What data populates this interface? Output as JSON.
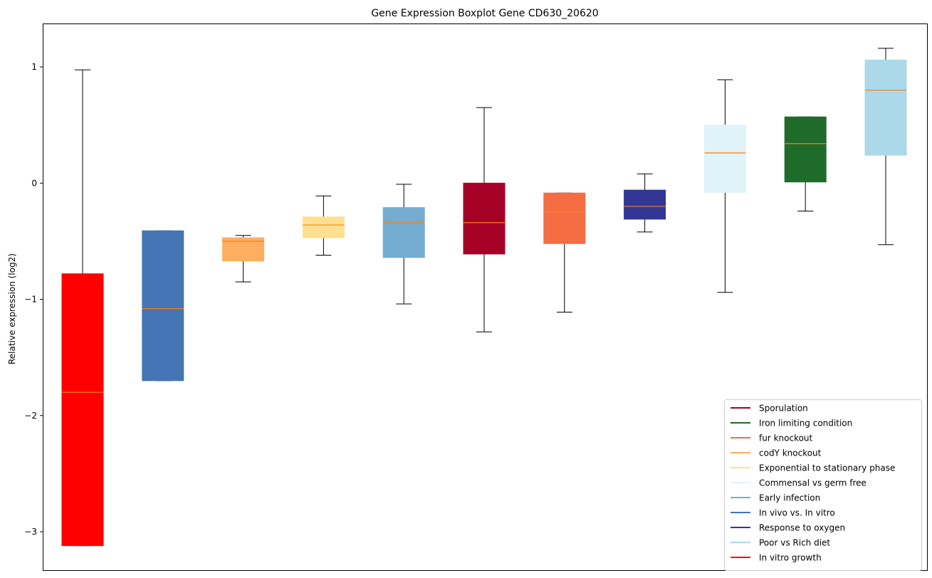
{
  "chart_data": {
    "type": "boxplot",
    "title": "Gene Expression Boxplot Gene CD630_20620",
    "xlabel": "",
    "ylabel": "Relative expression (log2)",
    "ylim": [
      -3.337,
      1.374
    ],
    "yticks": [
      1,
      0,
      -1,
      -2,
      -3
    ],
    "ytick_labels": [
      "1",
      "0",
      "−1",
      "−2",
      "−3"
    ],
    "grid": false,
    "legend_position": "bottom-right",
    "median_color": "#ff7f0e",
    "boxes": [
      {
        "name": "In vitro growth",
        "color": "#ff0000",
        "whislo": -3.12,
        "q1": -3.12,
        "med": -1.8,
        "q3": -0.78,
        "whishi": 0.975
      },
      {
        "name": "In vivo vs. In vitro",
        "color": "#4575b4",
        "whislo": -1.7,
        "q1": -1.7,
        "med": -1.08,
        "q3": -0.41,
        "whishi": -0.41
      },
      {
        "name": "codY knockout",
        "color": "#fdae61",
        "whislo": -0.85,
        "q1": -0.67,
        "med": -0.5,
        "q3": -0.47,
        "whishi": -0.45
      },
      {
        "name": "Exponential to stationary phase",
        "color": "#fee090",
        "whislo": -0.62,
        "q1": -0.47,
        "med": -0.36,
        "q3": -0.29,
        "whishi": -0.11
      },
      {
        "name": "Early infection",
        "color": "#74add1",
        "whislo": -1.04,
        "q1": -0.64,
        "med": -0.34,
        "q3": -0.21,
        "whishi": -0.01
      },
      {
        "name": "Sporulation",
        "color": "#a50026",
        "whislo": -1.28,
        "q1": -0.61,
        "med": -0.34,
        "q3": 0.0,
        "whishi": 0.65
      },
      {
        "name": "fur knockout",
        "color": "#f46d43",
        "whislo": -1.11,
        "q1": -0.52,
        "med": -0.245,
        "q3": -0.085,
        "whishi": -0.085
      },
      {
        "name": "Response to oxygen",
        "color": "#313695",
        "whislo": -0.42,
        "q1": -0.31,
        "med": -0.2,
        "q3": -0.06,
        "whishi": 0.08
      },
      {
        "name": "Commensal vs germ free",
        "color": "#e0f3f8",
        "whislo": -0.94,
        "q1": -0.08,
        "med": 0.26,
        "q3": 0.5,
        "whishi": 0.89
      },
      {
        "name": "Iron limiting condition",
        "color": "#1f6b2a",
        "whislo": -0.24,
        "q1": 0.01,
        "med": 0.34,
        "q3": 0.57,
        "whishi": 0.57
      },
      {
        "name": "Poor vs Rich diet",
        "color": "#abd9e9",
        "whislo": -0.53,
        "q1": 0.24,
        "med": 0.8,
        "q3": 1.06,
        "whishi": 1.16
      }
    ],
    "legend": [
      {
        "label": "Sporulation",
        "color": "#a50026"
      },
      {
        "label": "Iron limiting condition",
        "color": "#1f6b2a"
      },
      {
        "label": "fur knockout",
        "color": "#f46d43"
      },
      {
        "label": "codY knockout",
        "color": "#fdae61"
      },
      {
        "label": "Exponential to stationary phase",
        "color": "#fee090"
      },
      {
        "label": "Commensal vs germ free",
        "color": "#e0f3f8"
      },
      {
        "label": "Early infection",
        "color": "#74add1"
      },
      {
        "label": "In vivo vs. In vitro",
        "color": "#4575b4"
      },
      {
        "label": "Response to oxygen",
        "color": "#313695"
      },
      {
        "label": "Poor vs Rich diet",
        "color": "#abd9e9"
      },
      {
        "label": "In vitro growth",
        "color": "#ff0000"
      }
    ]
  }
}
